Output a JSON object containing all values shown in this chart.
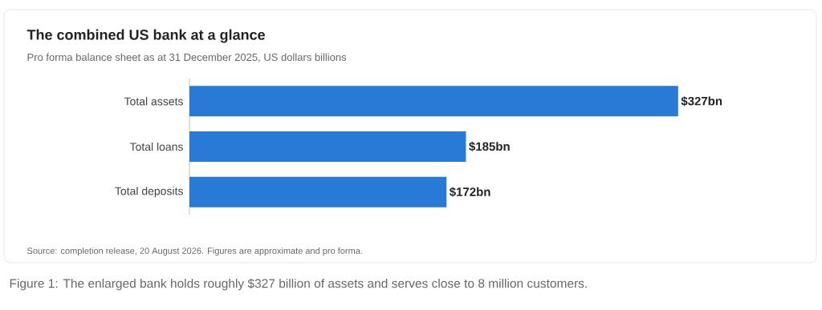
{
  "chart_data": {
    "type": "bar",
    "orientation": "horizontal",
    "title": "The combined US bank at a glance",
    "subtitle": "Pro forma balance sheet as at 31 December 2025, US dollars billions",
    "categories": [
      "Total assets",
      "Total loans",
      "Total deposits"
    ],
    "values": [
      327,
      185,
      172
    ],
    "value_labels": [
      "$327bn",
      "$185bn",
      "$172bn"
    ],
    "color": "#2979d6",
    "tick_labels": "y",
    "annotations": [
      "Source: completion release, 20 August 2026. Figures are approximate and pro forma.",
      "Figure 1: The enlarged bank holds roughly $327 billion of assets and serves close to 8 million customers."
    ]
  }
}
